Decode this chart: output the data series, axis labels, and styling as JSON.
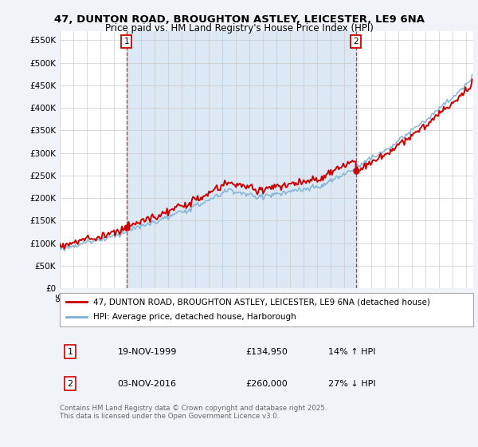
{
  "title_line1": "47, DUNTON ROAD, BROUGHTON ASTLEY, LEICESTER, LE9 6NA",
  "title_line2": "Price paid vs. HM Land Registry's House Price Index (HPI)",
  "ytick_values": [
    0,
    50000,
    100000,
    150000,
    200000,
    250000,
    300000,
    350000,
    400000,
    450000,
    500000,
    550000
  ],
  "ylim": [
    0,
    570000
  ],
  "xlim_start": 1995.0,
  "xlim_end": 2025.5,
  "property_color": "#cc0000",
  "hpi_color": "#7aafd4",
  "hpi_fill_color": "#dce9f5",
  "marker1_date": 1999.92,
  "marker1_value": 134950,
  "marker2_date": 2016.84,
  "marker2_value": 260000,
  "legend_property": "47, DUNTON ROAD, BROUGHTON ASTLEY, LEICESTER, LE9 6NA (detached house)",
  "legend_hpi": "HPI: Average price, detached house, Harborough",
  "table_row1": [
    "1",
    "19-NOV-1999",
    "£134,950",
    "14% ↑ HPI"
  ],
  "table_row2": [
    "2",
    "03-NOV-2016",
    "£260,000",
    "27% ↓ HPI"
  ],
  "footnote": "Contains HM Land Registry data © Crown copyright and database right 2025.\nThis data is licensed under the Open Government Licence v3.0.",
  "background_color": "#f0f4f8",
  "plot_bg_color": "#ffffff"
}
